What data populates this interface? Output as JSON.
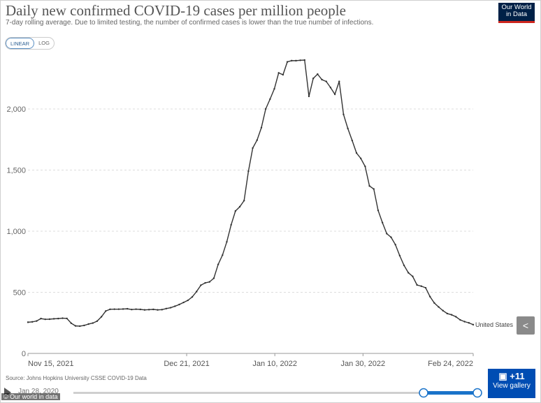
{
  "header": {
    "title": "Daily new confirmed COVID-19 cases per million people",
    "subtitle": "7-day rolling average. Due to limited testing, the number of confirmed cases is lower than the true number of infections.",
    "logo_line1": "Our World",
    "logo_line2": "in Data"
  },
  "controls": {
    "linear_label": "LINEAR",
    "log_label": "LOG",
    "share_icon": "share-icon"
  },
  "footer": {
    "source": "Source: Johns Hopkins University CSSE COVID-19 Data",
    "timeline_start": "Jan 28, 2020",
    "credit": "© Our world in data"
  },
  "gallery": {
    "count": "+11",
    "label": "View gallery",
    "icon": "camera-icon"
  },
  "colors": {
    "line": "#333333",
    "grid": "#dddddd",
    "accent": "#1a73c9"
  },
  "chart_data": {
    "type": "line",
    "title": "Daily new confirmed COVID-19 cases per million people",
    "x_ticks": [
      "Nov 15, 2021",
      "Dec 21, 2021",
      "Jan 10, 2022",
      "Jan 30, 2022",
      "Feb 24, 2022"
    ],
    "y_ticks": [
      "0",
      "500",
      "1,000",
      "1,500",
      "2,000"
    ],
    "ylim": [
      0,
      2400
    ],
    "x_start": "2021-11-15",
    "x_end": "2022-02-24",
    "grid": true,
    "series": [
      {
        "name": "United States",
        "values": [
          255,
          258,
          265,
          285,
          279,
          280,
          283,
          285,
          288,
          286,
          247,
          225,
          223,
          229,
          240,
          248,
          264,
          300,
          347,
          361,
          362,
          362,
          363,
          365,
          359,
          362,
          360,
          356,
          358,
          360,
          356,
          358,
          367,
          374,
          386,
          400,
          417,
          434,
          462,
          506,
          558,
          577,
          585,
          615,
          728,
          804,
          913,
          1052,
          1165,
          1200,
          1250,
          1490,
          1680,
          1745,
          1847,
          2000,
          2080,
          2165,
          2295,
          2280,
          2385,
          2395,
          2395,
          2398,
          2400,
          2103,
          2250,
          2285,
          2240,
          2225,
          2175,
          2120,
          2225,
          1955,
          1840,
          1742,
          1640,
          1595,
          1530,
          1370,
          1345,
          1170,
          1070,
          980,
          950,
          890,
          800,
          720,
          660,
          630,
          560,
          550,
          537,
          465,
          413,
          380,
          350,
          326,
          316,
          300,
          274,
          260,
          250,
          235
        ]
      }
    ]
  }
}
